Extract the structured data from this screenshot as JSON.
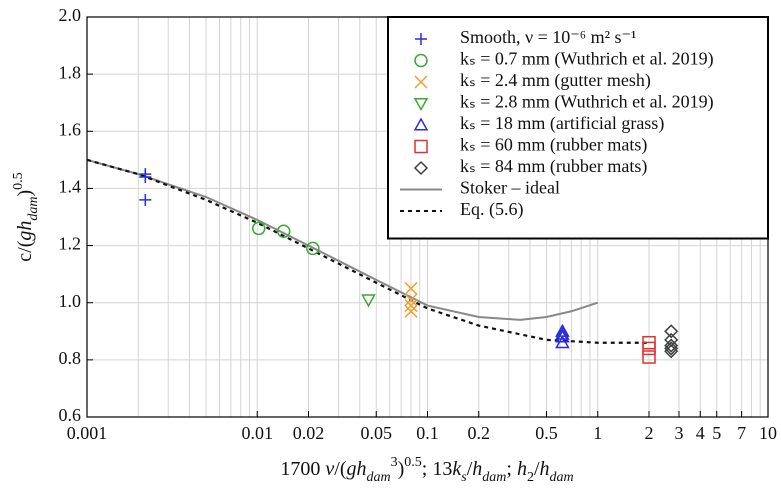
{
  "chart_data": {
    "type": "scatter",
    "xlabel": [
      {
        "text": "1700 "
      },
      {
        "text": "ν",
        "italic": true
      },
      {
        "text": "/("
      },
      {
        "text": "gh",
        "italic": true
      },
      {
        "text": "dam",
        "italic": true,
        "sub": true
      },
      {
        "text": "3",
        "sup": true
      },
      {
        "text": ")"
      },
      {
        "text": "0.5",
        "sup": true
      },
      {
        "text": "; 13"
      },
      {
        "text": "k",
        "italic": true
      },
      {
        "text": "s",
        "italic": true,
        "sub": true
      },
      {
        "text": "/"
      },
      {
        "text": "h",
        "italic": true
      },
      {
        "text": "dam",
        "italic": true,
        "sub": true
      },
      {
        "text": "; "
      },
      {
        "text": "h",
        "italic": true
      },
      {
        "text": "2",
        "sub": true
      },
      {
        "text": "/"
      },
      {
        "text": "h",
        "italic": true
      },
      {
        "text": "dam",
        "italic": true,
        "sub": true
      }
    ],
    "ylabel": [
      {
        "text": "c/("
      },
      {
        "text": "gh",
        "italic": true
      },
      {
        "text": "dam",
        "italic": true,
        "sub": true
      },
      {
        "text": ")"
      },
      {
        "text": "0.5",
        "sup": true
      }
    ],
    "xscale": "log",
    "xlim": [
      0.001,
      10
    ],
    "ylim": [
      0.6,
      2.0
    ],
    "xticks": [
      0.001,
      0.01,
      0.02,
      0.05,
      0.1,
      0.2,
      0.5,
      1,
      2,
      3,
      4,
      5,
      7,
      10
    ],
    "x_minor_grid": [
      0.002,
      0.003,
      0.004,
      0.005,
      0.006,
      0.007,
      0.008,
      0.009,
      0.03,
      0.04,
      0.06,
      0.07,
      0.08,
      0.09,
      0.3,
      0.4,
      0.6,
      0.7,
      0.8,
      0.9,
      6,
      8,
      9
    ],
    "yticks": [
      0.6,
      0.8,
      1.0,
      1.2,
      1.4,
      1.6,
      1.8,
      2.0
    ],
    "grid": true,
    "legend": "upper right",
    "series": [
      {
        "name": "Smooth, ν = 10⁻⁶ m² s⁻¹",
        "marker": "plus",
        "color": "#2b2bdc",
        "x": [
          0.0022,
          0.0022,
          0.0022
        ],
        "values": [
          1.45,
          1.44,
          1.36
        ]
      },
      {
        "name": "kₛ = 0.7 mm (Wuthrich et al. 2019)",
        "marker": "circle",
        "color": "#3aa832",
        "x": [
          0.0102,
          0.0143,
          0.0212
        ],
        "values": [
          1.26,
          1.25,
          1.19
        ]
      },
      {
        "name": "kₛ = 2.4 mm (gutter mesh)",
        "marker": "x",
        "color": "#f0a030",
        "x": [
          0.08,
          0.08,
          0.08,
          0.08
        ],
        "values": [
          1.05,
          1.01,
          0.99,
          0.97
        ]
      },
      {
        "name": "kₛ = 2.8 mm (Wuthrich et al. 2019)",
        "marker": "tri-down",
        "color": "#3aa832",
        "x": [
          0.045
        ],
        "values": [
          1.01
        ]
      },
      {
        "name": "kₛ = 18 mm (artificial grass)",
        "marker": "tri-up",
        "color": "#2b2bdc",
        "x": [
          0.62,
          0.62,
          0.62,
          0.62
        ],
        "values": [
          0.9,
          0.89,
          0.88,
          0.86
        ]
      },
      {
        "name": "kₛ = 60 mm (rubber mats)",
        "marker": "square",
        "color": "#e03030",
        "x": [
          2,
          2,
          2
        ],
        "values": [
          0.86,
          0.84,
          0.81
        ]
      },
      {
        "name": "kₛ = 84 mm (rubber mats)",
        "marker": "diamond",
        "color": "#404040",
        "x": [
          2.7,
          2.7,
          2.7,
          2.7,
          2.7
        ],
        "values": [
          0.9,
          0.87,
          0.85,
          0.84,
          0.83
        ]
      },
      {
        "name": "Stoker – ideal",
        "marker": "line",
        "style": "solid",
        "color": "#888888",
        "x": [
          0.001,
          0.002,
          0.005,
          0.01,
          0.02,
          0.05,
          0.1,
          0.2,
          0.35,
          0.5,
          0.7,
          1
        ],
        "values": [
          1.5,
          1.45,
          1.37,
          1.29,
          1.2,
          1.08,
          0.99,
          0.95,
          0.94,
          0.95,
          0.97,
          1.0
        ]
      },
      {
        "name": "Eq. (5.6)",
        "marker": "line",
        "style": "dashed",
        "color": "#111111",
        "x": [
          0.001,
          0.002,
          0.005,
          0.01,
          0.02,
          0.05,
          0.1,
          0.2,
          0.5,
          1,
          2
        ],
        "values": [
          1.5,
          1.45,
          1.36,
          1.28,
          1.19,
          1.07,
          0.98,
          0.92,
          0.87,
          0.86,
          0.86
        ]
      }
    ]
  }
}
